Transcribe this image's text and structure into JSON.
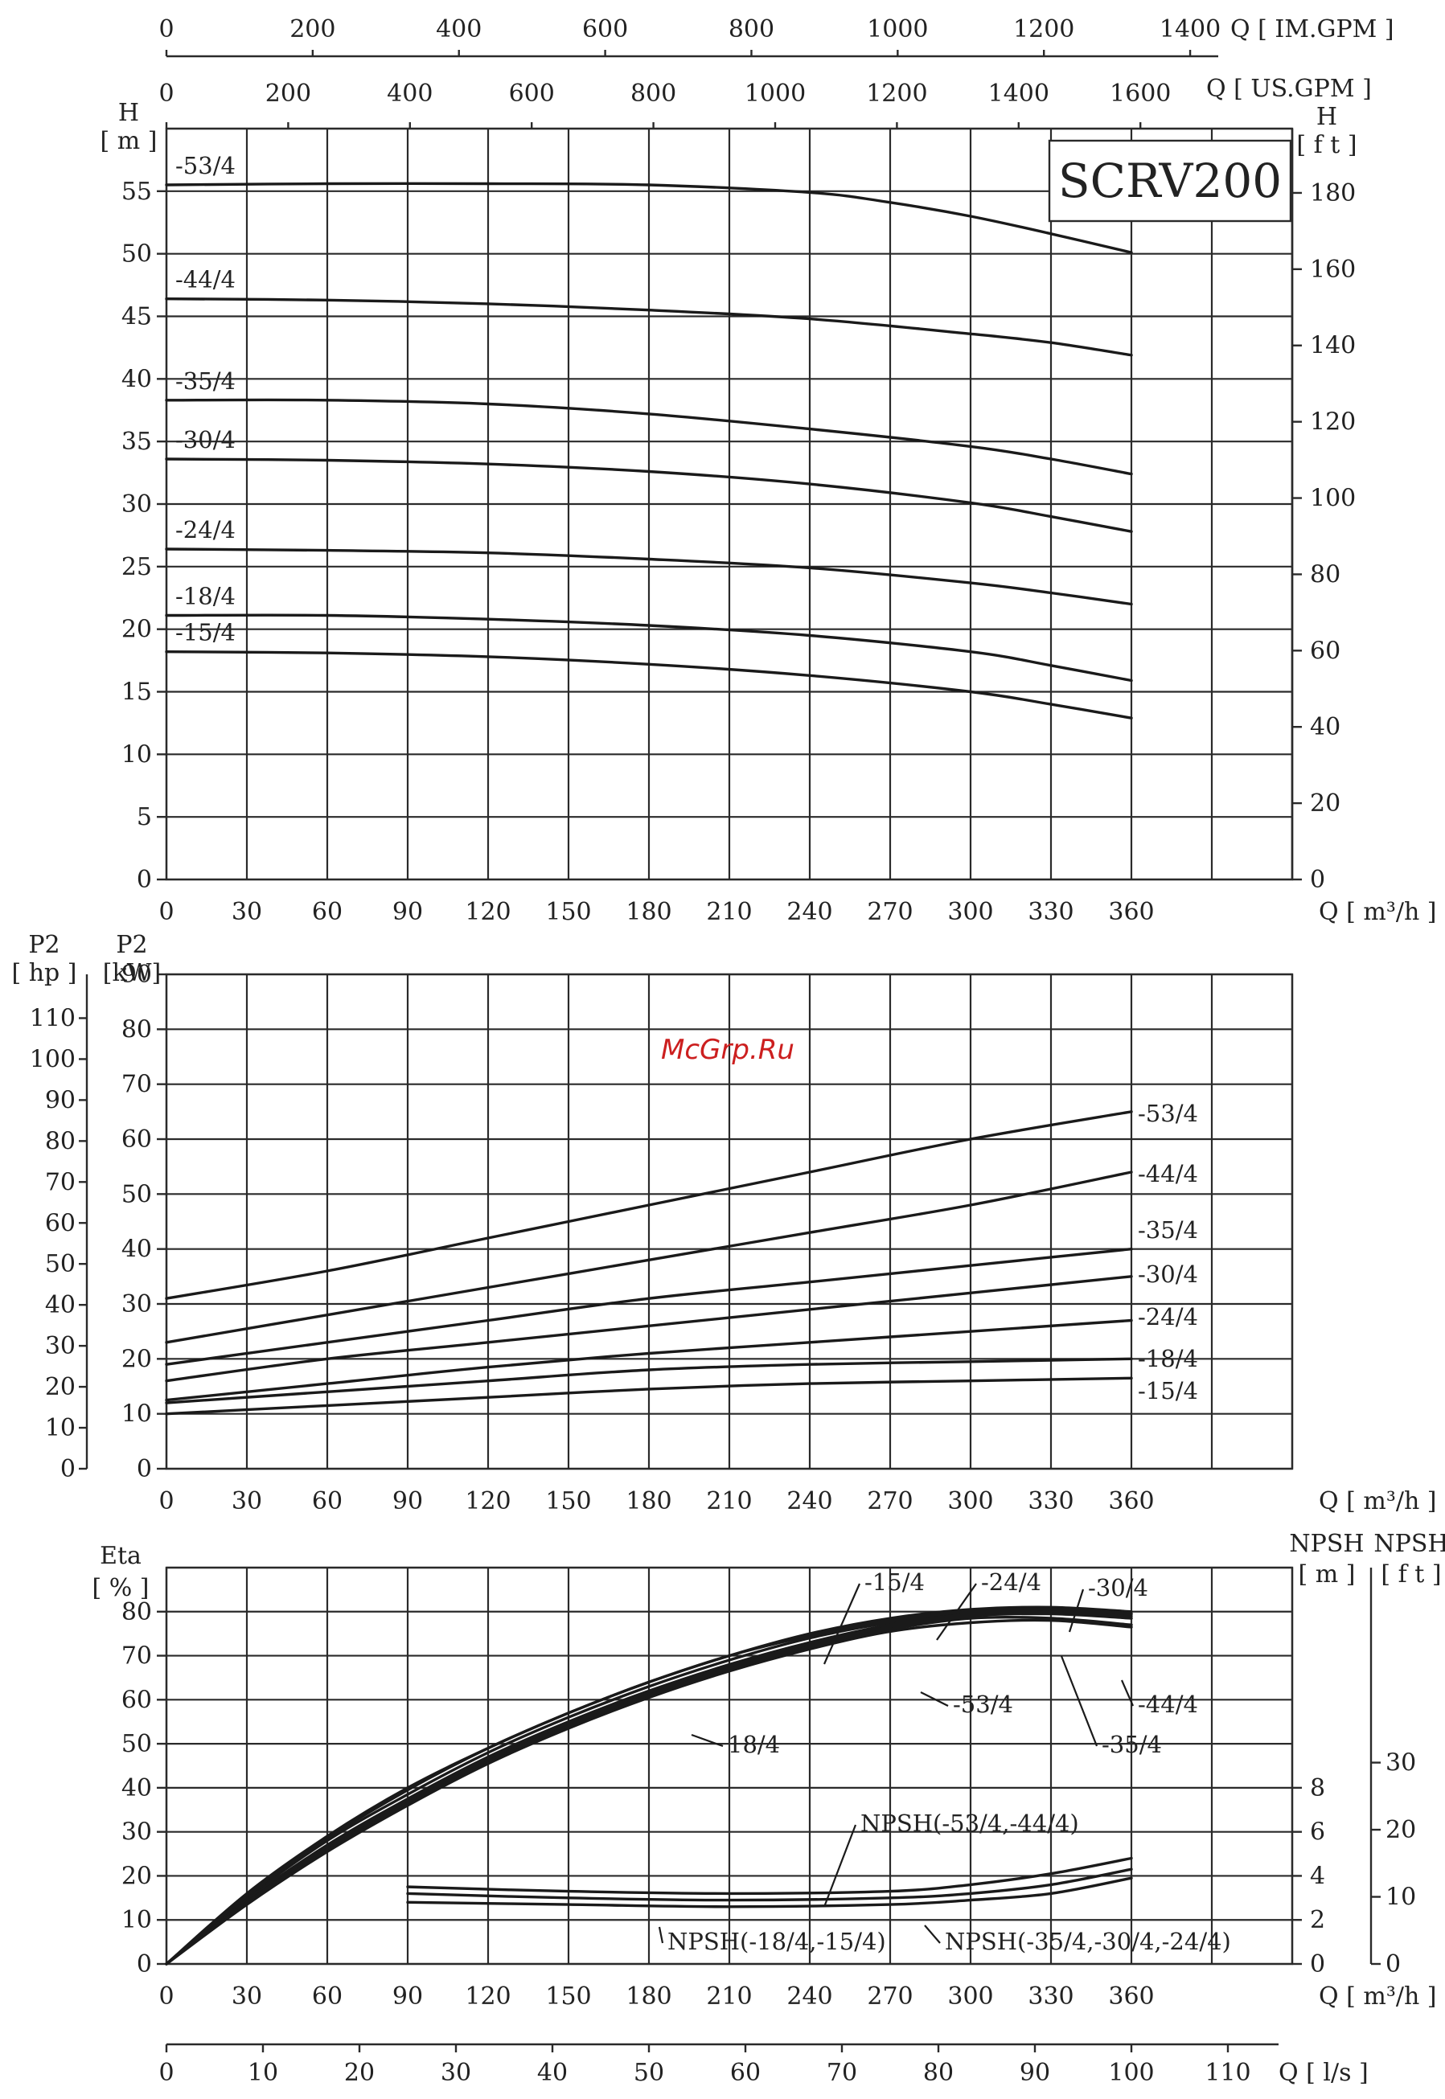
{
  "watermark": "McGrp.Ru",
  "chart_data": [
    {
      "name": "head",
      "type": "line",
      "title": "SCRV200",
      "xlabel": "Q [ m³/h ]",
      "ylabel": "H\n[ m ]",
      "ylabel_right": "H\n[ f t ]",
      "x_ticks": [
        "0",
        "30",
        "60",
        "90",
        "120",
        "150",
        "180",
        "210",
        "240",
        "270",
        "300",
        "330",
        "360"
      ],
      "y_ticks": [
        "0",
        "5",
        "10",
        "15",
        "20",
        "25",
        "30",
        "35",
        "40",
        "45",
        "50",
        "55"
      ],
      "y_ticks_right": [
        "0",
        "20",
        "40",
        "60",
        "80",
        "100",
        "120",
        "140",
        "160",
        "180"
      ],
      "xlim": [
        0,
        420
      ],
      "ylim": [
        0,
        60
      ],
      "top_axes": [
        {
          "label": "Q [ IM.GPM ]",
          "ticks": [
            "0",
            "200",
            "400",
            "600",
            "800",
            "1000",
            "1200",
            "1400"
          ]
        },
        {
          "label": "Q [ US.GPM ]",
          "ticks": [
            "0",
            "200",
            "400",
            "600",
            "800",
            "1000",
            "1200",
            "1400",
            "1600"
          ]
        }
      ],
      "grid": true,
      "series": [
        {
          "name": "-53/4",
          "x": [
            0,
            60,
            120,
            180,
            240,
            270,
            300,
            330,
            360
          ],
          "y": [
            55.5,
            55.6,
            55.6,
            55.5,
            54.9,
            54.1,
            53.0,
            51.6,
            50.1
          ]
        },
        {
          "name": "-44/4",
          "x": [
            0,
            60,
            120,
            180,
            240,
            300,
            330,
            360
          ],
          "y": [
            46.4,
            46.3,
            46.0,
            45.5,
            44.8,
            43.6,
            42.9,
            41.9
          ]
        },
        {
          "name": "-35/4",
          "x": [
            0,
            60,
            120,
            180,
            240,
            300,
            330,
            360
          ],
          "y": [
            38.3,
            38.3,
            38.0,
            37.2,
            36.0,
            34.6,
            33.6,
            32.4
          ]
        },
        {
          "name": "-30/4",
          "x": [
            0,
            60,
            120,
            180,
            240,
            300,
            330,
            360
          ],
          "y": [
            33.6,
            33.5,
            33.2,
            32.6,
            31.6,
            30.1,
            29.0,
            27.8
          ]
        },
        {
          "name": "-24/4",
          "x": [
            0,
            60,
            120,
            180,
            240,
            300,
            330,
            360
          ],
          "y": [
            26.4,
            26.3,
            26.1,
            25.6,
            24.9,
            23.7,
            22.9,
            22.0
          ]
        },
        {
          "name": "-18/4",
          "x": [
            0,
            60,
            120,
            180,
            240,
            300,
            330,
            360
          ],
          "y": [
            21.1,
            21.1,
            20.8,
            20.3,
            19.5,
            18.2,
            17.1,
            15.9
          ]
        },
        {
          "name": "-15/4",
          "x": [
            0,
            60,
            120,
            180,
            240,
            300,
            330,
            360
          ],
          "y": [
            18.2,
            18.1,
            17.8,
            17.2,
            16.3,
            15.0,
            14.0,
            12.9
          ]
        }
      ]
    },
    {
      "name": "power",
      "type": "line",
      "xlabel": "Q [ m³/h ]",
      "ylabel": "P2\n[kW]",
      "ylabel_left": "P2\n[ hp ]",
      "x_ticks": [
        "0",
        "30",
        "60",
        "90",
        "120",
        "150",
        "180",
        "210",
        "240",
        "270",
        "300",
        "330",
        "360"
      ],
      "y_ticks": [
        "0",
        "10",
        "20",
        "30",
        "40",
        "50",
        "60",
        "70",
        "80",
        "90"
      ],
      "y_ticks_hp": [
        "0",
        "10",
        "20",
        "30",
        "40",
        "50",
        "60",
        "70",
        "80",
        "90",
        "100",
        "110"
      ],
      "xlim": [
        0,
        420
      ],
      "ylim": [
        0,
        90
      ],
      "grid": true,
      "series": [
        {
          "name": "-53/4",
          "x": [
            0,
            60,
            120,
            180,
            240,
            300,
            360
          ],
          "y": [
            31,
            36,
            42,
            48,
            54,
            60,
            65
          ]
        },
        {
          "name": "-44/4",
          "x": [
            0,
            60,
            120,
            180,
            240,
            300,
            360
          ],
          "y": [
            23,
            28,
            33,
            38,
            43,
            48,
            54
          ]
        },
        {
          "name": "-35/4",
          "x": [
            0,
            60,
            120,
            180,
            240,
            300,
            360
          ],
          "y": [
            19,
            23,
            27,
            31,
            34,
            37,
            40
          ]
        },
        {
          "name": "-30/4",
          "x": [
            0,
            60,
            120,
            180,
            240,
            300,
            360
          ],
          "y": [
            16,
            20,
            23,
            26,
            29,
            32,
            35
          ]
        },
        {
          "name": "-24/4",
          "x": [
            0,
            60,
            120,
            180,
            240,
            300,
            360
          ],
          "y": [
            12.5,
            15.5,
            18.5,
            21,
            23,
            25,
            27
          ]
        },
        {
          "name": "-18/4",
          "x": [
            0,
            60,
            120,
            180,
            240,
            300,
            360
          ],
          "y": [
            12,
            14,
            16,
            18,
            19,
            19.5,
            20
          ]
        },
        {
          "name": "-15/4",
          "x": [
            0,
            60,
            120,
            180,
            240,
            300,
            360
          ],
          "y": [
            10,
            11.5,
            13,
            14.5,
            15.5,
            16,
            16.5
          ]
        }
      ]
    },
    {
      "name": "efficiency",
      "type": "line",
      "xlabel": "Q [ m³/h ]",
      "ylabel": "Eta\n[ % ]",
      "ylabel_npsh_m": "NPSH\n[ m ]",
      "ylabel_npsh_ft": "NPSH\n[ f t ]",
      "x_ticks": [
        "0",
        "30",
        "60",
        "90",
        "120",
        "150",
        "180",
        "210",
        "240",
        "270",
        "300",
        "330",
        "360"
      ],
      "y_ticks": [
        "0",
        "10",
        "20",
        "30",
        "40",
        "50",
        "60",
        "70",
        "80"
      ],
      "y_ticks_npsh_m": [
        "0",
        "2",
        "4",
        "6",
        "8"
      ],
      "y_ticks_npsh_ft": [
        "0",
        "10",
        "20",
        "30"
      ],
      "xlim": [
        0,
        420
      ],
      "ylim": [
        0,
        90
      ],
      "bottom_axis": {
        "label": "Q [ l/s ]",
        "ticks": [
          "0",
          "10",
          "20",
          "30",
          "40",
          "50",
          "60",
          "70",
          "80",
          "90",
          "100",
          "110"
        ]
      },
      "grid": true,
      "series": [
        {
          "name": "-15/4",
          "x": [
            0,
            30,
            60,
            90,
            120,
            150,
            180,
            210,
            240,
            270,
            300,
            330,
            360
          ],
          "y": [
            0,
            16,
            29,
            40,
            49,
            57,
            64,
            70,
            75,
            78.5,
            80.5,
            81,
            80
          ]
        },
        {
          "name": "-24/4",
          "x": [
            0,
            30,
            60,
            90,
            120,
            150,
            180,
            210,
            240,
            270,
            300,
            330,
            360
          ],
          "y": [
            0,
            15,
            28,
            38.5,
            48,
            56,
            63,
            69,
            74,
            77.5,
            79.5,
            80,
            79
          ]
        },
        {
          "name": "-30/4",
          "x": [
            0,
            30,
            60,
            90,
            120,
            150,
            180,
            210,
            240,
            270,
            300,
            330,
            360
          ],
          "y": [
            0,
            14.5,
            27,
            37.5,
            47,
            55,
            62,
            68,
            73,
            77,
            79.5,
            80.5,
            79.5
          ]
        },
        {
          "name": "-35/4",
          "x": [
            0,
            30,
            60,
            90,
            120,
            150,
            180,
            210,
            240,
            270,
            300,
            330,
            360
          ],
          "y": [
            0,
            14,
            26.5,
            37,
            46.5,
            54.5,
            61.5,
            67.5,
            72.5,
            76.5,
            79,
            79.5,
            78.5
          ]
        },
        {
          "name": "-44/4",
          "x": [
            0,
            30,
            60,
            90,
            120,
            150,
            180,
            210,
            240,
            270,
            300,
            330,
            360
          ],
          "y": [
            0,
            14,
            26,
            36.5,
            46,
            54,
            61,
            67,
            72,
            76,
            78.5,
            78.5,
            77
          ]
        },
        {
          "name": "-53/4",
          "x": [
            0,
            30,
            60,
            90,
            120,
            150,
            180,
            210,
            240,
            270,
            300,
            330,
            360
          ],
          "y": [
            0,
            13.5,
            25.5,
            36,
            45.5,
            53.5,
            60.5,
            66.5,
            71.5,
            75.5,
            77.5,
            78,
            76.5
          ]
        },
        {
          "name": "18/4",
          "x": [
            0,
            30,
            60,
            90,
            120,
            150,
            180,
            210,
            240,
            270,
            300,
            330,
            360
          ],
          "y": [
            0,
            15.5,
            28.5,
            39.5,
            49,
            57,
            64,
            70,
            74.5,
            78,
            80,
            80.5,
            79.5
          ]
        },
        {
          "name": "NPSH(-53/4,-44/4)",
          "x": [
            90,
            150,
            210,
            270,
            300,
            330,
            360
          ],
          "y": [
            17.5,
            16.5,
            16,
            16.5,
            18,
            20.5,
            24
          ]
        },
        {
          "name": "NPSH(-35/4,-30/4,-24/4)",
          "x": [
            90,
            150,
            210,
            270,
            300,
            330,
            360
          ],
          "y": [
            16,
            15,
            14.5,
            15,
            16,
            18,
            21.5
          ]
        },
        {
          "name": "NPSH(-18/4,-15/4)",
          "x": [
            90,
            150,
            210,
            270,
            300,
            330,
            360
          ],
          "y": [
            14,
            13.5,
            13,
            13.5,
            14.5,
            16,
            19.5
          ]
        }
      ]
    }
  ]
}
